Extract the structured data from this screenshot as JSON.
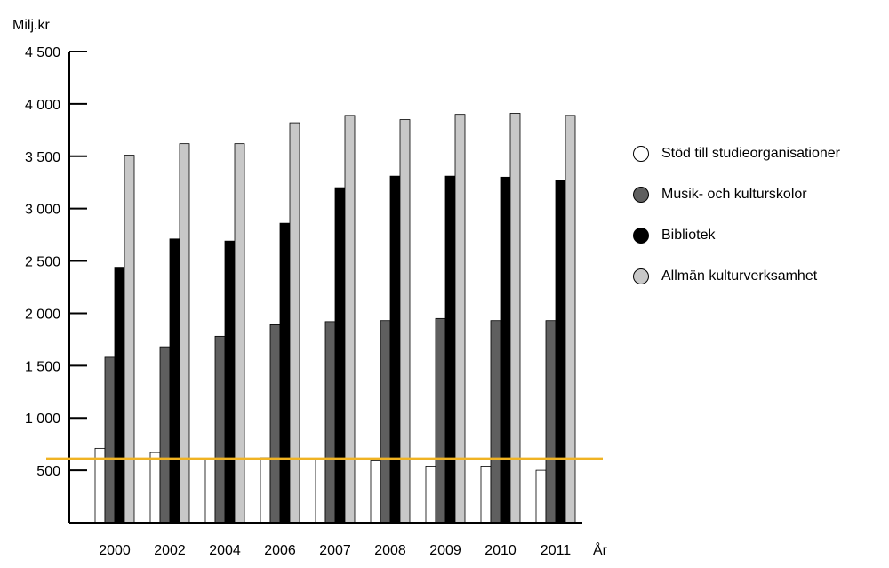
{
  "chart_data": {
    "type": "bar",
    "ylabel": "Milj.kr",
    "xlabel": "År",
    "ylim": [
      0,
      4500
    ],
    "yticks": [
      500,
      1000,
      1500,
      2000,
      2500,
      3000,
      3500,
      4000,
      4500
    ],
    "ytick_labels": [
      "500",
      "1 000",
      "1 500",
      "2 000",
      "2 500",
      "3 000",
      "3 500",
      "4 000",
      "4 500"
    ],
    "categories": [
      "2000",
      "2002",
      "2004",
      "2006",
      "2007",
      "2008",
      "2009",
      "2010",
      "2011"
    ],
    "series": [
      {
        "name": "Stöd till studieorganisationer",
        "color": "#ffffff",
        "values": [
          710,
          670,
          610,
          620,
          600,
          590,
          540,
          540,
          500
        ]
      },
      {
        "name": "Musik- och kulturskolor",
        "color": "#5f5f5f",
        "values": [
          1580,
          1680,
          1780,
          1890,
          1920,
          1930,
          1950,
          1930,
          1930
        ]
      },
      {
        "name": "Bibliotek",
        "color": "#000000",
        "values": [
          2440,
          2710,
          2690,
          2860,
          3200,
          3310,
          3310,
          3300,
          3270
        ]
      },
      {
        "name": "Allmän kulturverksamhet",
        "color": "#c8c8c8",
        "values": [
          3510,
          3620,
          3620,
          3820,
          3890,
          3850,
          3900,
          3910,
          3890
        ]
      }
    ],
    "reference_line": {
      "value": 610,
      "color": "#f0b323"
    },
    "legend_position": "right",
    "grid": false
  }
}
